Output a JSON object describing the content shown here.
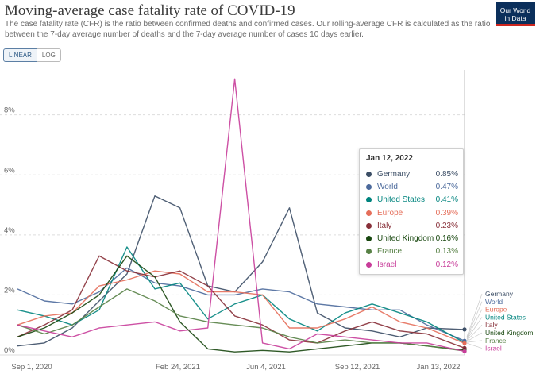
{
  "header": {
    "title": "Moving-average case fatality rate of COVID-19",
    "subtitle": "The case fatality rate (CFR) is the ratio between confirmed deaths and confirmed cases. Our rolling-average CFR is calculated as the ratio between the 7-day average number of deaths and the 7-day average number of cases 10 days earlier.",
    "logo_line1": "Our World",
    "logo_line2": "in Data"
  },
  "scale_toggle": {
    "linear_label": "LINEAR",
    "log_label": "LOG",
    "selected": "LINEAR"
  },
  "tooltip": {
    "date": "Jan 12, 2022",
    "rows": [
      {
        "name": "Germany",
        "value": "0.85%",
        "color": "#3c4e66"
      },
      {
        "name": "World",
        "value": "0.47%",
        "color": "#4c6a9c"
      },
      {
        "name": "United States",
        "value": "0.41%",
        "color": "#00847e"
      },
      {
        "name": "Europe",
        "value": "0.39%",
        "color": "#e56e5a"
      },
      {
        "name": "Italy",
        "value": "0.23%",
        "color": "#883039"
      },
      {
        "name": "United Kingdom",
        "value": "0.16%",
        "color": "#18470f"
      },
      {
        "name": "France",
        "value": "0.13%",
        "color": "#578145"
      },
      {
        "name": "Israel",
        "value": "0.12%",
        "color": "#c83d9a"
      }
    ]
  },
  "chart_data": {
    "type": "line",
    "title": "Moving-average case fatality rate of COVID-19",
    "xlabel": "",
    "ylabel": "",
    "x_ticks": [
      "Sep 1, 2020",
      "Feb 24, 2021",
      "Jun 4, 2021",
      "Sep 12, 2021",
      "Jan 13, 2022"
    ],
    "y_ticks": [
      "0%",
      "2%",
      "4%",
      "6%",
      "8%"
    ],
    "ylim": [
      0,
      9.5
    ],
    "y_unit": "%",
    "grid": "horizontal dashed",
    "legend": "labels at right end of lines",
    "x": [
      "2020-09-01",
      "2020-10-01",
      "2020-11-01",
      "2020-12-01",
      "2021-01-01",
      "2021-02-01",
      "2021-03-01",
      "2021-04-01",
      "2021-05-01",
      "2021-06-01",
      "2021-07-01",
      "2021-08-01",
      "2021-09-01",
      "2021-10-01",
      "2021-11-01",
      "2021-12-01",
      "2022-01-12"
    ],
    "series": [
      {
        "name": "Germany",
        "color": "#3c4e66",
        "values": [
          0.3,
          0.4,
          0.9,
          1.8,
          2.7,
          5.3,
          4.9,
          2.3,
          2.1,
          3.1,
          4.9,
          1.4,
          0.9,
          0.8,
          0.6,
          0.9,
          0.85
        ]
      },
      {
        "name": "World",
        "color": "#4c6a9c",
        "values": [
          2.2,
          1.8,
          1.7,
          2.1,
          2.9,
          2.4,
          2.3,
          2.0,
          2.0,
          2.2,
          2.1,
          1.7,
          1.6,
          1.5,
          1.5,
          1.0,
          0.47
        ]
      },
      {
        "name": "United States",
        "color": "#00847e",
        "values": [
          1.5,
          1.3,
          1.0,
          1.5,
          3.6,
          2.2,
          2.4,
          1.2,
          1.7,
          2.0,
          1.2,
          0.8,
          1.4,
          1.7,
          1.4,
          1.1,
          0.41
        ]
      },
      {
        "name": "Europe",
        "color": "#e56e5a",
        "values": [
          1.0,
          1.3,
          1.4,
          2.3,
          2.5,
          2.8,
          2.7,
          2.1,
          2.1,
          2.0,
          0.9,
          0.9,
          1.2,
          1.6,
          1.1,
          0.9,
          0.39
        ]
      },
      {
        "name": "Italy",
        "color": "#883039",
        "values": [
          0.6,
          1.0,
          1.5,
          3.3,
          2.8,
          2.6,
          2.8,
          2.3,
          1.3,
          1.0,
          0.5,
          0.4,
          0.8,
          1.1,
          0.8,
          0.7,
          0.23
        ]
      },
      {
        "name": "United Kingdom",
        "color": "#18470f",
        "values": [
          0.6,
          0.9,
          1.4,
          2.0,
          3.3,
          2.6,
          1.1,
          0.2,
          0.1,
          0.15,
          0.1,
          0.2,
          0.3,
          0.4,
          0.4,
          0.3,
          0.16
        ]
      },
      {
        "name": "France",
        "color": "#578145",
        "values": [
          1.0,
          0.7,
          1.0,
          1.6,
          2.2,
          1.8,
          1.3,
          1.1,
          1.0,
          0.9,
          0.6,
          0.4,
          0.5,
          0.4,
          0.4,
          0.3,
          0.13
        ]
      },
      {
        "name": "Israel",
        "color": "#c83d9a",
        "values": [
          1.0,
          0.8,
          0.6,
          0.9,
          1.0,
          1.1,
          0.8,
          0.9,
          9.2,
          0.4,
          0.2,
          0.7,
          0.6,
          0.5,
          0.4,
          0.4,
          0.12
        ]
      }
    ],
    "end_labels": [
      "Germany",
      "World",
      "Europe",
      "United States",
      "Italy",
      "United Kingdom",
      "France",
      "Israel"
    ]
  }
}
